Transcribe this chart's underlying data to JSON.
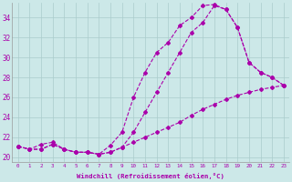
{
  "xlabel": "Windchill (Refroidissement éolien,°C)",
  "xlim": [
    -0.5,
    23.5
  ],
  "ylim": [
    19.5,
    35.5
  ],
  "yticks": [
    20,
    22,
    24,
    26,
    28,
    30,
    32,
    34
  ],
  "xticks": [
    0,
    1,
    2,
    3,
    4,
    5,
    6,
    7,
    8,
    9,
    10,
    11,
    12,
    13,
    14,
    15,
    16,
    17,
    18,
    19,
    20,
    21,
    22,
    23
  ],
  "xtick_labels": [
    "0",
    "1",
    "2",
    "3",
    "4",
    "5",
    "6",
    "7",
    "8",
    "9",
    "10",
    "11",
    "12",
    "13",
    "14",
    "15",
    "16",
    "17",
    "18",
    "19",
    "20",
    "21",
    "22",
    "23"
  ],
  "background_color": "#cce8e8",
  "grid_color": "#aacccc",
  "line_color": "#aa00aa",
  "curve1_x": [
    0,
    1,
    2,
    3,
    4,
    5,
    6,
    7,
    8,
    9,
    10,
    11,
    12,
    13,
    14,
    15,
    16,
    17,
    18,
    19,
    20,
    21,
    22,
    23
  ],
  "curve1_y": [
    21.1,
    20.8,
    20.8,
    21.3,
    20.8,
    20.5,
    20.5,
    20.3,
    20.5,
    21.0,
    22.5,
    24.5,
    26.5,
    28.5,
    30.5,
    32.5,
    33.5,
    35.2,
    34.8,
    33.0,
    29.5,
    28.5,
    28.0,
    27.2
  ],
  "curve2_x": [
    0,
    1,
    2,
    3,
    4,
    5,
    6,
    7,
    8,
    9,
    10,
    11,
    12,
    13,
    14,
    15,
    16,
    17,
    18,
    19,
    20,
    21,
    22,
    23
  ],
  "curve2_y": [
    21.1,
    20.8,
    21.3,
    21.5,
    20.8,
    20.5,
    20.5,
    20.3,
    21.2,
    22.5,
    26.0,
    28.5,
    30.5,
    31.5,
    33.2,
    34.0,
    35.2,
    35.3,
    34.8,
    33.0,
    29.5,
    28.5,
    28.0,
    27.2
  ],
  "curve3_x": [
    0,
    1,
    2,
    3,
    4,
    5,
    6,
    7,
    8,
    9,
    10,
    11,
    12,
    13,
    14,
    15,
    16,
    17,
    18,
    19,
    20,
    21,
    22,
    23
  ],
  "curve3_y": [
    21.1,
    20.8,
    20.8,
    21.3,
    20.8,
    20.5,
    20.5,
    20.3,
    20.5,
    21.0,
    21.5,
    22.0,
    22.5,
    23.0,
    23.5,
    24.2,
    24.8,
    25.3,
    25.8,
    26.2,
    26.5,
    26.8,
    27.0,
    27.2
  ]
}
